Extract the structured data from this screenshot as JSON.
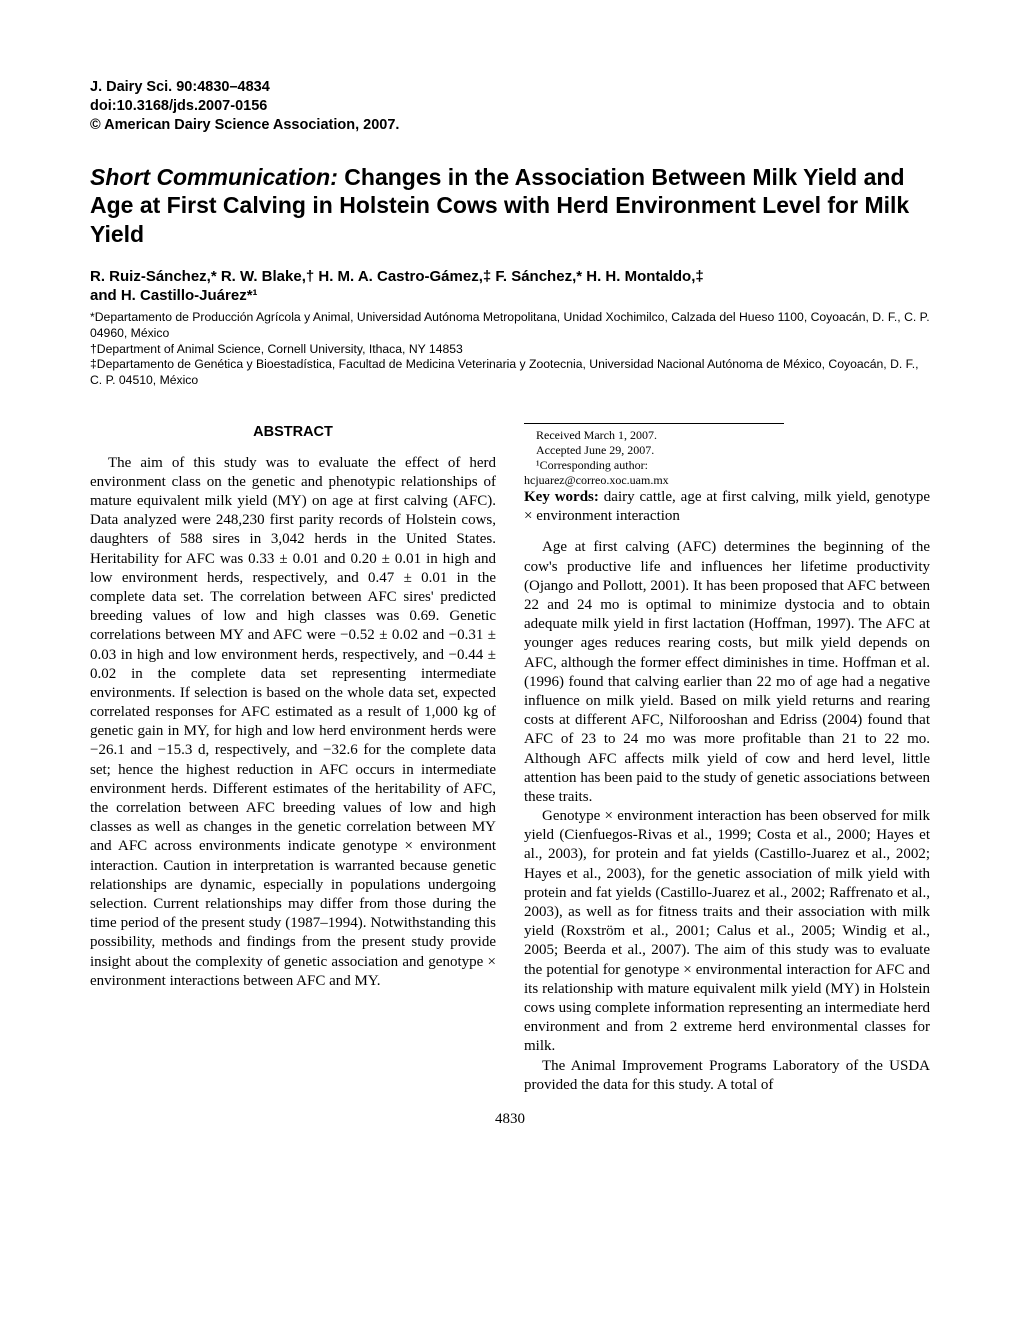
{
  "journal": {
    "citation": "J. Dairy Sci. 90:4830–4834",
    "doi": "doi:10.3168/jds.2007-0156",
    "copyright": "© American Dairy Science Association, 2007."
  },
  "title": {
    "prefix": "Short Communication:",
    "main": "Changes in the Association Between Milk Yield and Age at First Calving in Holstein Cows with Herd Environment Level for Milk Yield"
  },
  "authors_line1": "R. Ruiz-Sánchez,* R. W. Blake,† H. M. A. Castro-Gámez,‡ F. Sánchez,* H. H. Montaldo,‡",
  "authors_line2": "and H. Castillo-Juárez*¹",
  "affiliations": {
    "a1": "*Departamento de Producción Agrícola y Animal, Universidad Autónoma Metropolitana, Unidad Xochimilco, Calzada del Hueso 1100, Coyoacán, D. F., C. P. 04960, México",
    "a2": "†Department of Animal Science, Cornell University, Ithaca, NY 14853",
    "a3": "‡Departamento de Genética y Bioestadística, Facultad de Medicina Veterinaria y Zootecnia, Universidad Nacional Autónoma de México, Coyoacán, D. F., C. P. 04510, México"
  },
  "abstract_heading": "ABSTRACT",
  "abstract_p1": "The aim of this study was to evaluate the effect of herd environment class on the genetic and phenotypic relationships of mature equivalent milk yield (MY) on age at first calving (AFC). Data analyzed were 248,230 first parity records of Holstein cows, daughters of 588 sires in 3,042 herds in the United States. Heritability for AFC was 0.33 ± 0.01 and 0.20 ± 0.01 in high and low environment herds, respectively, and 0.47 ± 0.01 in the complete data set. The correlation between AFC sires' predicted breeding values of low and high classes was 0.69. Genetic correlations between MY and AFC were −0.52 ± 0.02 and −0.31 ± 0.03 in high and low environment herds, respectively, and −0.44 ± 0.02 in the complete data set representing intermediate environments. If selection is based on the whole data set, expected correlated responses for AFC estimated as a result of 1,000 kg of genetic gain in MY, for high and low herd environment herds were −26.1 and −15.3 d, respectively, and −32.6 for the complete data set; hence the highest reduction in AFC occurs in intermediate environment herds. Different estimates of the heritability of AFC, the correlation between AFC breeding values of low and high classes as well as changes in the genetic correlation between MY and AFC across environments indicate genotype × environment interaction. Caution in interpretation is warranted because genetic relationships are dynamic, especially in populations undergoing selection. Current relationships may differ from those during the time period of the present study (1987–1994). Notwithstanding this possibility, methods and findings from the present study provide insight about the complexity of genetic association and genotype × environment interactions between AFC and MY.",
  "keywords_label": "Key words:",
  "keywords_text": " dairy cattle, age at first calving, milk yield, genotype × environment interaction",
  "body_p1": "Age at first calving (AFC) determines the beginning of the cow's productive life and influences her lifetime productivity (Ojango and Pollott, 2001). It has been proposed that AFC between 22 and 24 mo is optimal to minimize dystocia and to obtain adequate milk yield in first lactation (Hoffman, 1997). The AFC at younger ages reduces rearing costs, but milk yield depends on AFC, although the former effect diminishes in time. Hoffman et al. (1996) found that calving earlier than 22 mo of age had a negative influence on milk yield. Based on milk yield returns and rearing costs at different AFC, Nilforooshan and Edriss (2004) found that AFC of 23 to 24 mo was more profitable than 21 to 22 mo. Although AFC affects milk yield of cow and herd level, little attention has been paid to the study of genetic associations between these traits.",
  "body_p2": "Genotype × environment interaction has been observed for milk yield (Cienfuegos-Rivas et al., 1999; Costa et al., 2000; Hayes et al., 2003), for protein and fat yields (Castillo-Juarez et al., 2002; Hayes et al., 2003), for the genetic association of milk yield with protein and fat yields (Castillo-Juarez et al., 2002; Raffrenato et al., 2003), as well as for fitness traits and their association with milk yield (Roxström et al., 2001; Calus et al., 2005; Windig et al., 2005; Beerda et al., 2007). The aim of this study was to evaluate the potential for genotype × environmental interaction for AFC and its relationship with mature equivalent milk yield (MY) in Holstein cows using complete information representing an intermediate herd environment and from 2 extreme herd environmental classes for milk.",
  "body_p3": "The Animal Improvement Programs Laboratory of the USDA provided the data for this study. A total of",
  "footnotes": {
    "received": "Received March 1, 2007.",
    "accepted": "Accepted June 29, 2007.",
    "corresponding": "¹Corresponding author: hcjuarez@correo.xoc.uam.mx"
  },
  "page_number": "4830"
}
